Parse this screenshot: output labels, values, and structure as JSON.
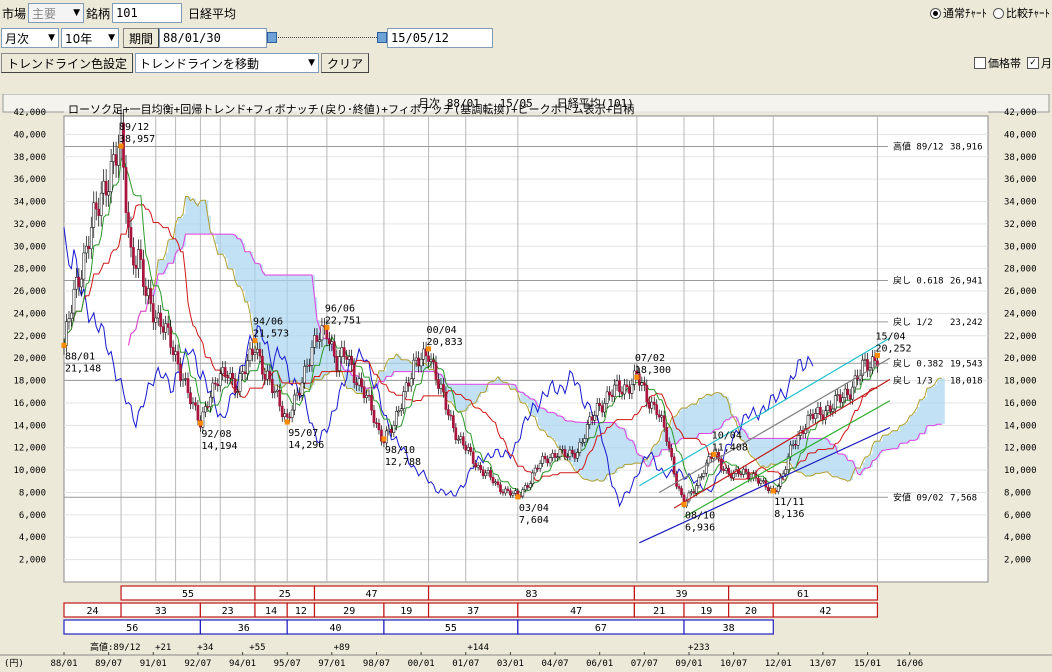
{
  "toolbar1": {
    "market_label": "市場",
    "market_value": "主要",
    "code_label": "銘柄",
    "code_value": "101",
    "name": "日経平均",
    "radio_normal": "通常ﾁｬｰﾄ",
    "radio_compare": "比較ﾁｬｰﾄ"
  },
  "toolbar2": {
    "period_type": "月次",
    "span": "10年",
    "period_btn": "期間",
    "start_date": "88/01/30",
    "end_date": "15/05/12",
    "slider_start": 0,
    "slider_end": 1
  },
  "toolbar3": {
    "color_btn": "トレンドライン色設定",
    "mode_value": "トレンドラインを移動",
    "clear_btn": "クリア",
    "price_band_label": "価格帯",
    "check2_label": "月"
  },
  "chart_header": {
    "period": "月次 88/01 - 15/05",
    "title": "日経平均(101)"
  },
  "legend": "ローソク足+一目均衡+回帰トレンド+フィボナッチ(戻り･終値)+フィボナッチ(基調転換)+ピークボトム表示+日柄",
  "colors": {
    "candle_up": "#ffffff",
    "candle_down": "#a8143c",
    "ma_green": "#2a9a2a",
    "ma_red": "#d01818",
    "span_a": "#e040e0",
    "span_b": "#b0a030",
    "cloud": "#a8d4f0",
    "chikou": "#1818d0",
    "reg_cyan": "#20c0d0",
    "reg_gray": "#808080",
    "reg_blue": "#1a1ac0",
    "reg_red": "#c01818",
    "reg_green": "#30b030",
    "reg_magenta": "#d040d0",
    "grid": "#a0a0a0",
    "marker": "#ff8c00"
  },
  "chart_data": {
    "type": "candlestick",
    "ylim": [
      0,
      42000
    ],
    "y_ticks": [
      "2,000",
      "4,000",
      "6,000",
      "8,000",
      "10,000",
      "12,000",
      "14,000",
      "16,000",
      "18,000",
      "20,000",
      "22,000",
      "24,000",
      "26,000",
      "28,000",
      "30,000",
      "32,000",
      "34,000",
      "36,000",
      "38,000",
      "40,000",
      "42,000"
    ],
    "y_tick_values": [
      2000,
      4000,
      6000,
      8000,
      10000,
      12000,
      14000,
      16000,
      18000,
      20000,
      22000,
      24000,
      26000,
      28000,
      30000,
      32000,
      34000,
      36000,
      38000,
      40000,
      42000
    ],
    "yunit": "(円)",
    "x_ticks": [
      "88/01",
      "89/07",
      "91/01",
      "92/07",
      "94/01",
      "95/07",
      "97/01",
      "98/07",
      "00/01",
      "01/07",
      "03/01",
      "04/07",
      "06/01",
      "07/07",
      "09/01",
      "10/07",
      "12/01",
      "13/07",
      "15/01",
      "16/06"
    ],
    "x_tick_months": [
      0,
      18,
      36,
      54,
      72,
      90,
      108,
      126,
      144,
      162,
      180,
      198,
      216,
      234,
      252,
      270,
      288,
      306,
      324,
      341
    ],
    "close_points": [
      [
        0,
        21148
      ],
      [
        5,
        26500
      ],
      [
        10,
        30800
      ],
      [
        14,
        33500
      ],
      [
        17,
        36000
      ],
      [
        23,
        38957
      ],
      [
        27,
        29500
      ],
      [
        30,
        29000
      ],
      [
        33,
        25500
      ],
      [
        37,
        24000
      ],
      [
        40,
        23000
      ],
      [
        44,
        20500
      ],
      [
        48,
        18500
      ],
      [
        52,
        15500
      ],
      [
        55,
        14194
      ],
      [
        58,
        16500
      ],
      [
        62,
        17800
      ],
      [
        66,
        19000
      ],
      [
        70,
        17200
      ],
      [
        74,
        19500
      ],
      [
        77,
        21573
      ],
      [
        81,
        18200
      ],
      [
        86,
        16800
      ],
      [
        90,
        14296
      ],
      [
        94,
        16500
      ],
      [
        98,
        19800
      ],
      [
        102,
        21500
      ],
      [
        106,
        22751
      ],
      [
        110,
        19500
      ],
      [
        114,
        20300
      ],
      [
        118,
        18200
      ],
      [
        121,
        16800
      ],
      [
        124,
        15400
      ],
      [
        127,
        13500
      ],
      [
        129,
        12788
      ],
      [
        133,
        13800
      ],
      [
        137,
        17100
      ],
      [
        141,
        19000
      ],
      [
        147,
        20833
      ],
      [
        151,
        17500
      ],
      [
        155,
        15200
      ],
      [
        159,
        12800
      ],
      [
        163,
        11600
      ],
      [
        167,
        10300
      ],
      [
        171,
        9500
      ],
      [
        175,
        8500
      ],
      [
        179,
        8100
      ],
      [
        183,
        7604
      ],
      [
        187,
        8800
      ],
      [
        191,
        10300
      ],
      [
        195,
        11100
      ],
      [
        199,
        11600
      ],
      [
        203,
        11200
      ],
      [
        207,
        11800
      ],
      [
        211,
        13600
      ],
      [
        215,
        15600
      ],
      [
        219,
        16500
      ],
      [
        223,
        17200
      ],
      [
        227,
        17500
      ],
      [
        231,
        18300
      ],
      [
        235,
        16500
      ],
      [
        239,
        15500
      ],
      [
        243,
        12800
      ],
      [
        247,
        9000
      ],
      [
        250,
        6936
      ],
      [
        254,
        8200
      ],
      [
        258,
        10200
      ],
      [
        262,
        11400
      ],
      [
        266,
        10200
      ],
      [
        270,
        9500
      ],
      [
        274,
        9800
      ],
      [
        278,
        9500
      ],
      [
        282,
        8600
      ],
      [
        286,
        8136
      ],
      [
        290,
        9500
      ],
      [
        294,
        12400
      ],
      [
        298,
        13800
      ],
      [
        302,
        14800
      ],
      [
        306,
        15300
      ],
      [
        310,
        15700
      ],
      [
        314,
        16600
      ],
      [
        318,
        17500
      ],
      [
        322,
        19000
      ],
      [
        328,
        20252
      ]
    ],
    "peaks": [
      {
        "label": "88/01",
        "value": "21,148",
        "m": 0,
        "v": 21148,
        "pos": "below"
      },
      {
        "label": "89/12",
        "value": "38,957",
        "m": 23,
        "v": 38957,
        "pos": "above"
      },
      {
        "label": "92/08",
        "value": "14,194",
        "m": 55,
        "v": 14194,
        "pos": "below"
      },
      {
        "label": "94/06",
        "value": "21,573",
        "m": 77,
        "v": 21573,
        "pos": "above"
      },
      {
        "label": "95/07",
        "value": "14,296",
        "m": 90,
        "v": 14296,
        "pos": "below"
      },
      {
        "label": "96/06",
        "value": "22,751",
        "m": 106,
        "v": 22751,
        "pos": "above"
      },
      {
        "label": "98/10",
        "value": "12,788",
        "m": 129,
        "v": 12788,
        "pos": "below"
      },
      {
        "label": "00/04",
        "value": "20,833",
        "m": 147,
        "v": 20833,
        "pos": "above"
      },
      {
        "label": "03/04",
        "value": "7,604",
        "m": 183,
        "v": 7604,
        "pos": "below"
      },
      {
        "label": "07/02",
        "value": "18,300",
        "m": 231,
        "v": 18300,
        "pos": "above"
      },
      {
        "label": "08/10",
        "value": "6,936",
        "m": 250,
        "v": 6936,
        "pos": "below"
      },
      {
        "label": "10/04",
        "value": "11,408",
        "m": 262,
        "v": 11408,
        "pos": "above"
      },
      {
        "label": "11/11",
        "value": "8,136",
        "m": 286,
        "v": 8136,
        "pos": "below"
      },
      {
        "label": "15/04",
        "value": "20,252",
        "m": 328,
        "v": 20252,
        "pos": "above"
      }
    ],
    "fib_levels": [
      {
        "label": "高値 89/12",
        "value": "38,916",
        "v": 38916
      },
      {
        "label": "戻し 0.618",
        "value": "26,941",
        "v": 26941
      },
      {
        "label": "戻し 1/2",
        "value": "23,242",
        "v": 23242
      },
      {
        "label": "戻し 0.382",
        "value": "19,543",
        "v": 19543
      },
      {
        "label": "戻し 1/3",
        "value": "18,018",
        "v": 18018
      },
      {
        "label": "安値 09/02",
        "value": "7,568",
        "v": 7568
      }
    ],
    "vlines": [
      23,
      37,
      45,
      55,
      63,
      77,
      90,
      106,
      129,
      147,
      162,
      183,
      231,
      250,
      262,
      286,
      328
    ],
    "day_counts": {
      "row1": [
        {
          "from": 23,
          "to": 77,
          "text": "55"
        },
        {
          "from": 77,
          "to": 101,
          "text": "25"
        },
        {
          "from": 101,
          "to": 147,
          "text": "47"
        },
        {
          "from": 147,
          "to": 230,
          "text": "83"
        },
        {
          "from": 230,
          "to": 268,
          "text": "39"
        },
        {
          "from": 268,
          "to": 328,
          "text": "61"
        }
      ],
      "row2": [
        {
          "from": 0,
          "to": 23,
          "text": "24"
        },
        {
          "from": 23,
          "to": 55,
          "text": "33"
        },
        {
          "from": 55,
          "to": 77,
          "text": "23"
        },
        {
          "from": 77,
          "to": 90,
          "text": "14"
        },
        {
          "from": 90,
          "to": 101,
          "text": "12"
        },
        {
          "from": 101,
          "to": 129,
          "text": "29"
        },
        {
          "from": 129,
          "to": 147,
          "text": "19"
        },
        {
          "from": 147,
          "to": 183,
          "text": "37"
        },
        {
          "from": 183,
          "to": 230,
          "text": "47"
        },
        {
          "from": 230,
          "to": 250,
          "text": "21"
        },
        {
          "from": 250,
          "to": 268,
          "text": "19"
        },
        {
          "from": 268,
          "to": 286,
          "text": "20"
        },
        {
          "from": 286,
          "to": 328,
          "text": "42"
        }
      ],
      "row3": [
        {
          "from": 0,
          "to": 55,
          "text": "56"
        },
        {
          "from": 55,
          "to": 90,
          "text": "36"
        },
        {
          "from": 90,
          "to": 129,
          "text": "40"
        },
        {
          "from": 129,
          "to": 183,
          "text": "55"
        },
        {
          "from": 183,
          "to": 250,
          "text": "67"
        },
        {
          "from": 250,
          "to": 286,
          "text": "38"
        }
      ]
    },
    "since_high": {
      "label": "高値:89/12",
      "marks": [
        {
          "m": 40,
          "text": "+21"
        },
        {
          "m": 57,
          "text": "+34"
        },
        {
          "m": 78,
          "text": "+55"
        },
        {
          "m": 112,
          "text": "+89"
        },
        {
          "m": 167,
          "text": "+144"
        },
        {
          "m": 256,
          "text": "+233"
        }
      ]
    }
  }
}
